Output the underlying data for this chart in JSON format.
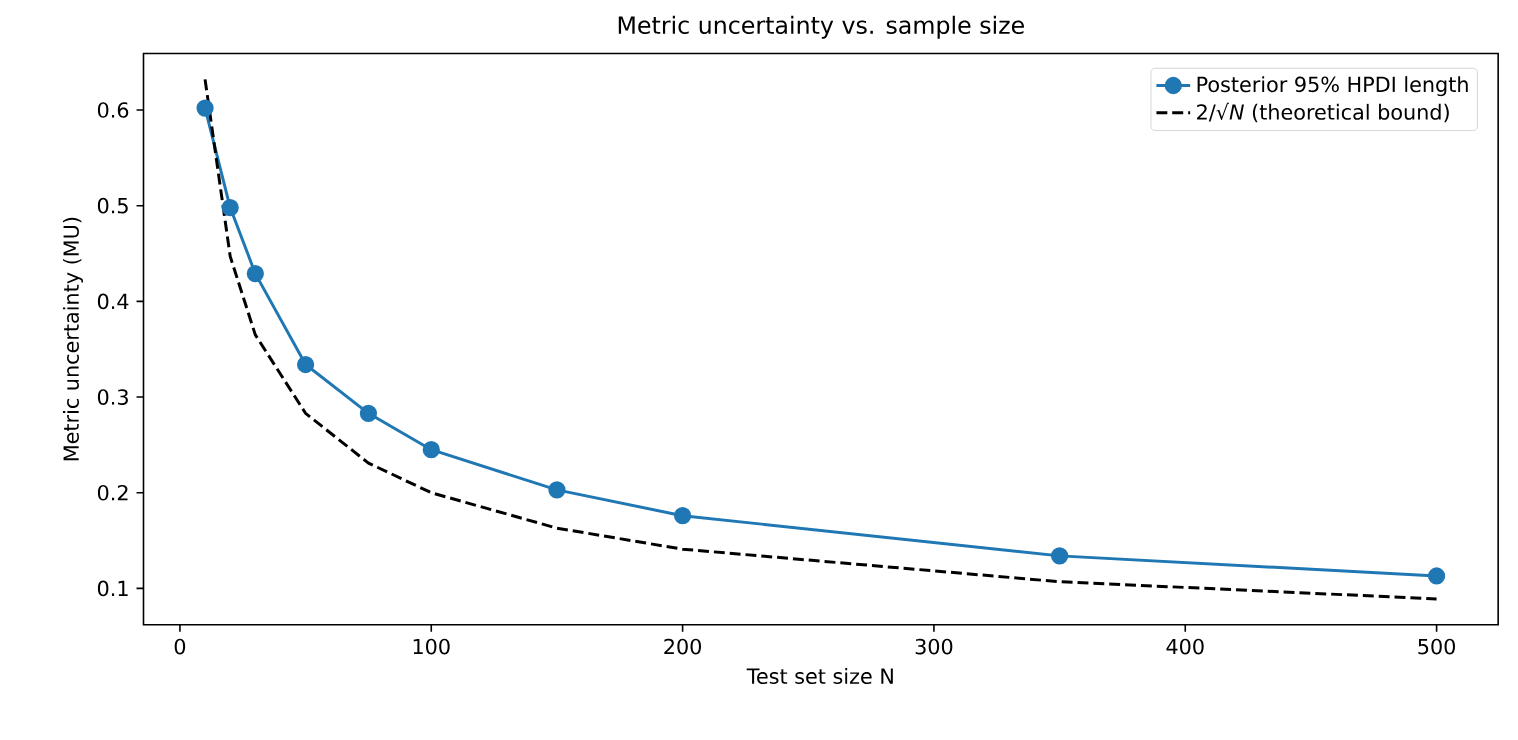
{
  "chart_data": {
    "type": "line",
    "title": "Metric uncertainty vs. sample size",
    "xlabel": "Test set size N",
    "ylabel": "Metric uncertainty (MU)",
    "xlim": [
      -14.5,
      524.5
    ],
    "xticks": [
      0,
      100,
      200,
      300,
      400,
      500
    ],
    "ylim": [
      0.062,
      0.659
    ],
    "yticks": [
      {
        "value": 0.1,
        "label": "0.1"
      },
      {
        "value": 0.2,
        "label": "0.2"
      },
      {
        "value": 0.3,
        "label": "0.3"
      },
      {
        "value": 0.4,
        "label": "0.4"
      },
      {
        "value": 0.5,
        "label": "0.5"
      },
      {
        "value": 0.6,
        "label": "0.6"
      }
    ],
    "x": [
      10,
      20,
      30,
      50,
      75,
      100,
      150,
      200,
      350,
      500
    ],
    "series": [
      {
        "name": "Posterior 95% HPDI length",
        "color": "#1f77b4",
        "marker": "circle",
        "line_style": "solid",
        "values": [
          0.602,
          0.498,
          0.429,
          0.334,
          0.283,
          0.245,
          0.203,
          0.176,
          0.134,
          0.113
        ]
      },
      {
        "name": "2/√*N* (theoretical bound)",
        "color": "#000000",
        "marker": "none",
        "line_style": "dashed",
        "values": [
          0.632,
          0.447,
          0.365,
          0.283,
          0.231,
          0.2,
          0.163,
          0.141,
          0.107,
          0.089
        ]
      }
    ],
    "legend": "top right",
    "grid": false
  }
}
